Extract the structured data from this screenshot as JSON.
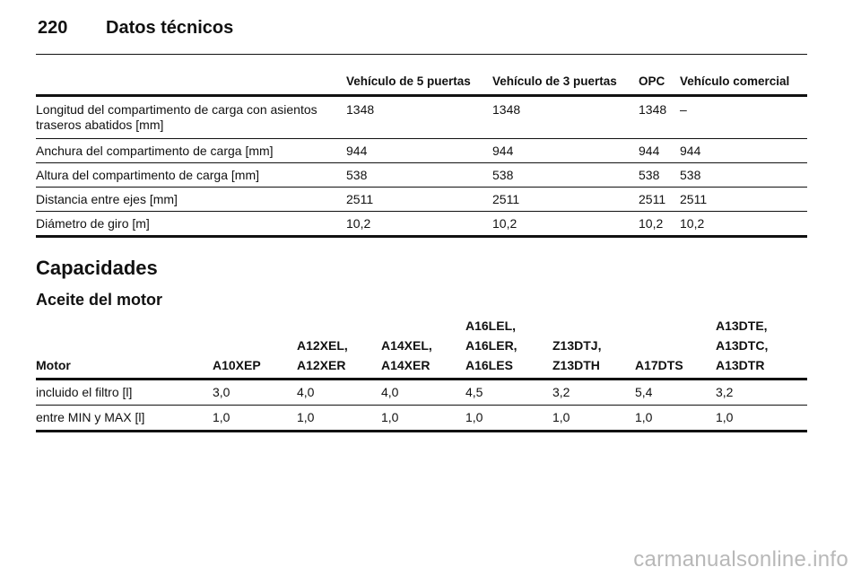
{
  "header": {
    "page_number": "220",
    "title": "Datos técnicos"
  },
  "dimensions_table": {
    "columns": [
      "",
      "Vehículo de 5 puertas",
      "Vehículo de 3 puertas",
      "OPC",
      "Vehículo comercial"
    ],
    "rows": [
      [
        "Longitud del compartimento de carga con asientos traseros abatidos [mm]",
        "1348",
        "1348",
        "1348",
        "–"
      ],
      [
        "Anchura del compartimento de carga [mm]",
        "944",
        "944",
        "944",
        "944"
      ],
      [
        "Altura del compartimento de carga [mm]",
        "538",
        "538",
        "538",
        "538"
      ],
      [
        "Distancia entre ejes [mm]",
        "2511",
        "2511",
        "2511",
        "2511"
      ],
      [
        "Diámetro de giro [m]",
        "10,2",
        "10,2",
        "10,2",
        "10,2"
      ]
    ]
  },
  "capacities": {
    "heading": "Capacidades",
    "subheading": "Aceite del motor"
  },
  "oil_table": {
    "columns": [
      [
        "Motor"
      ],
      [
        "A10XEP"
      ],
      [
        "A12XEL,",
        "A12XER"
      ],
      [
        "A14XEL,",
        "A14XER"
      ],
      [
        "A16LEL,",
        "A16LER,",
        "A16LES"
      ],
      [
        "Z13DTJ,",
        "Z13DTH"
      ],
      [
        "A17DTS"
      ],
      [
        "A13DTE,",
        "A13DTC,",
        "A13DTR"
      ]
    ],
    "rows": [
      [
        "incluido el filtro [l]",
        "3,0",
        "4,0",
        "4,0",
        "4,5",
        "3,2",
        "5,4",
        "3,2"
      ],
      [
        "entre MIN y MAX [l]",
        "1,0",
        "1,0",
        "1,0",
        "1,0",
        "1,0",
        "1,0",
        "1,0"
      ]
    ]
  },
  "watermark": "carmanualsonline.info"
}
